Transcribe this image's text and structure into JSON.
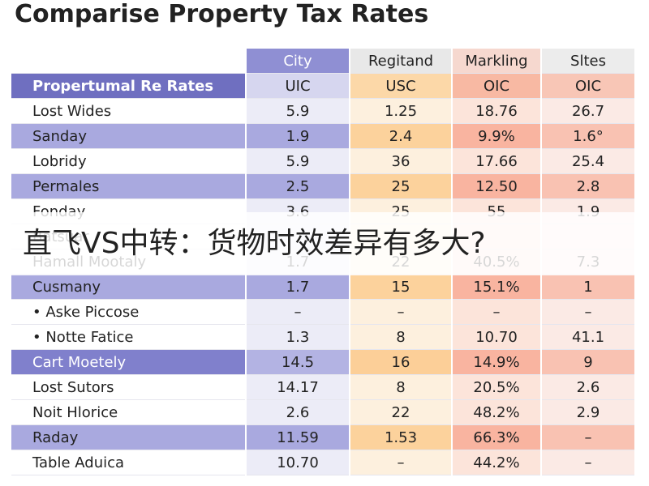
{
  "title": "Comparise Property Tax Rates",
  "banner": "直飞VS中转：货物时效差异有多大?",
  "table": {
    "columns": [
      "City",
      "Regitand",
      "Markling",
      "Sltes"
    ],
    "subheader": [
      "Propertumal Re Rates",
      "UIC",
      "USC",
      "OIC",
      "OIC"
    ],
    "rows": [
      {
        "label": "Lost Wides",
        "cells": [
          "5.9",
          "1.25",
          "18.76",
          "26.7"
        ],
        "style": "plain"
      },
      {
        "label": "Sanday",
        "cells": [
          "1.9",
          "2.4",
          "9.9%",
          "1.6°"
        ],
        "style": "band"
      },
      {
        "label": "Lobridy",
        "cells": [
          "5.9",
          "36",
          "17.66",
          "25.4"
        ],
        "style": "plain"
      },
      {
        "label": "Permales",
        "cells": [
          "2.5",
          "25",
          "12.50",
          "2.8"
        ],
        "style": "band"
      },
      {
        "label": "Fonday",
        "cells": [
          "3.6",
          "25",
          "55",
          "1.9"
        ],
        "style": "plain"
      },
      {
        "label": "Batsuar",
        "cells": [],
        "style": "plain"
      },
      {
        "label": "Hamall Mootaly",
        "cells": [
          "1.7",
          "22",
          "40.5%",
          "7.3"
        ],
        "style": "plain"
      },
      {
        "label": "Cusmany",
        "cells": [
          "1.7",
          "15",
          "15.1%",
          "1"
        ],
        "style": "band"
      },
      {
        "label": "• Aske Piccose",
        "cells": [
          "–",
          "–",
          "–",
          "–"
        ],
        "style": "sub"
      },
      {
        "label": "• Notte Fatice",
        "cells": [
          "1.3",
          "8",
          "10.70",
          "41.1"
        ],
        "style": "sub"
      },
      {
        "label": "Cart Moetely",
        "cells": [
          "14.5",
          "16",
          "14.9%",
          "9"
        ],
        "style": "strong"
      },
      {
        "label": "Lost Sutors",
        "cells": [
          "14.17",
          "8",
          "20.5%",
          "2.6"
        ],
        "style": "plain"
      },
      {
        "label": "Noit Hlorice",
        "cells": [
          "2.6",
          "22",
          "48.2%",
          "2.9"
        ],
        "style": "plain"
      },
      {
        "label": "Raday",
        "cells": [
          "11.59",
          "1.53",
          "66.3%",
          "–"
        ],
        "style": "band"
      },
      {
        "label": "Table Aduica",
        "cells": [
          "10.70",
          "–",
          "44.2%",
          "–"
        ],
        "style": "plain"
      }
    ]
  }
}
